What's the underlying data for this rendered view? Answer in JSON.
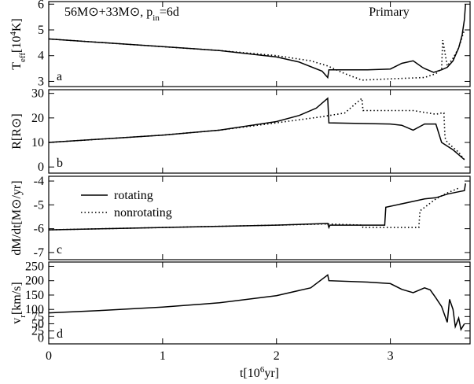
{
  "chart_data": [
    {
      "type": "line",
      "panel_label": "a",
      "title": [
        "56M⊙+33M⊙, p",
        {
          "text": "in",
          "pos": "sub"
        },
        "=6d"
      ],
      "annotation": "Primary",
      "ylabel": [
        "T",
        {
          "text": "eff",
          "pos": "sub"
        },
        "[10",
        {
          "text": "4",
          "pos": "super"
        },
        "K]"
      ],
      "ylim": [
        2.8,
        6.1
      ],
      "yticks": [
        3,
        4,
        5,
        6
      ],
      "series": [
        {
          "color": "#000000",
          "dash": "solid",
          "x": [
            0,
            0.5,
            1,
            1.5,
            2,
            2.2,
            2.4,
            2.45,
            2.46,
            2.8,
            3.0,
            3.1,
            3.2,
            3.28,
            3.3,
            3.38,
            3.45,
            3.5,
            3.55,
            3.6,
            3.63,
            3.65,
            3.66
          ],
          "values": [
            4.65,
            4.5,
            4.35,
            4.2,
            3.95,
            3.75,
            3.4,
            3.15,
            3.45,
            3.45,
            3.48,
            3.7,
            3.8,
            3.55,
            3.5,
            3.35,
            3.45,
            3.55,
            3.8,
            4.3,
            4.8,
            5.4,
            6.0
          ]
        },
        {
          "color": "#000000",
          "dash": "dotted",
          "x": [
            0,
            0.5,
            1,
            1.5,
            2,
            2.3,
            2.45,
            2.6,
            2.75,
            3.0,
            3.3,
            3.4,
            3.45,
            3.46,
            3.5,
            3.55,
            3.6,
            3.65
          ],
          "values": [
            4.65,
            4.5,
            4.35,
            4.2,
            4.0,
            3.8,
            3.6,
            3.3,
            3.05,
            3.1,
            3.15,
            3.3,
            3.5,
            4.6,
            3.6,
            3.9,
            4.3,
            5.0
          ]
        }
      ]
    },
    {
      "type": "line",
      "panel_label": "b",
      "ylabel": [
        "R[R⊙]"
      ],
      "ylim": [
        -2.5,
        31.5
      ],
      "yticks": [
        0,
        10,
        20,
        30
      ],
      "series": [
        {
          "color": "#000000",
          "dash": "solid",
          "x": [
            0,
            0.5,
            1,
            1.5,
            2,
            2.2,
            2.35,
            2.45,
            2.46,
            3.0,
            3.1,
            3.2,
            3.3,
            3.4,
            3.45,
            3.55,
            3.6,
            3.65
          ],
          "values": [
            10,
            11.5,
            13,
            15,
            18.5,
            21,
            24,
            28,
            18,
            17.5,
            17,
            15,
            17.5,
            17.5,
            10,
            7,
            5,
            3
          ]
        },
        {
          "color": "#000000",
          "dash": "dotted",
          "x": [
            0,
            0.5,
            1,
            1.5,
            2,
            2.4,
            2.6,
            2.75,
            2.76,
            3.2,
            3.4,
            3.45,
            3.47,
            3.48,
            3.5,
            3.6,
            3.65
          ],
          "values": [
            10,
            11.5,
            13,
            15,
            18,
            20.5,
            22,
            28,
            23,
            23,
            21.5,
            22,
            22,
            12,
            10,
            6,
            3
          ]
        }
      ]
    },
    {
      "type": "line",
      "panel_label": "c",
      "ylabel": [
        "dM/dt[M⊙/yr]"
      ],
      "ylim": [
        -7.3,
        -3.8
      ],
      "yticks": [
        -4,
        -5,
        -6,
        -7
      ],
      "series": [
        {
          "name": "rotating",
          "color": "#000000",
          "dash": "solid",
          "x": [
            0,
            0.5,
            1,
            1.5,
            2,
            2.45,
            2.46,
            2.47,
            2.95,
            2.96,
            3.3,
            3.4,
            3.5,
            3.6,
            3.65,
            3.66
          ],
          "values": [
            -6.05,
            -6.0,
            -5.95,
            -5.9,
            -5.85,
            -5.78,
            -5.95,
            -5.85,
            -5.85,
            -5.1,
            -4.75,
            -4.7,
            -4.55,
            -4.45,
            -4.4,
            -4.1
          ]
        },
        {
          "name": "nonrotating",
          "color": "#000000",
          "dash": "dotted",
          "x": [
            0,
            0.5,
            1,
            1.5,
            2,
            2.45,
            2.75,
            2.76,
            3.25,
            3.26,
            3.4,
            3.5,
            3.6
          ],
          "values": [
            -6.05,
            -6.0,
            -5.95,
            -5.9,
            -5.85,
            -5.8,
            -5.85,
            -5.95,
            -5.95,
            -5.25,
            -4.75,
            -4.5,
            -4.3
          ]
        }
      ]
    },
    {
      "type": "line",
      "panel_label": "d",
      "ylabel": [
        "v",
        {
          "text": "r",
          "pos": "sub"
        },
        "[km/s]"
      ],
      "ylim": [
        -20,
        265
      ],
      "yticks": [
        0,
        25,
        50,
        75,
        100,
        150,
        200,
        250
      ],
      "xlim": [
        0,
        3.7
      ],
      "xticks": [
        0,
        1,
        2,
        3
      ],
      "xlabel": [
        "t[10",
        {
          "text": "6",
          "pos": "super"
        },
        "yr]"
      ],
      "series": [
        {
          "color": "#000000",
          "dash": "solid",
          "x": [
            0,
            0.5,
            1,
            1.5,
            2,
            2.3,
            2.45,
            2.46,
            2.8,
            3.0,
            3.1,
            3.2,
            3.3,
            3.35,
            3.4,
            3.45,
            3.5,
            3.52,
            3.55,
            3.57,
            3.6,
            3.62,
            3.65
          ],
          "values": [
            88,
            97,
            108,
            123,
            148,
            175,
            220,
            200,
            195,
            190,
            170,
            158,
            175,
            168,
            140,
            110,
            55,
            135,
            100,
            40,
            70,
            30,
            50
          ]
        }
      ]
    }
  ]
}
